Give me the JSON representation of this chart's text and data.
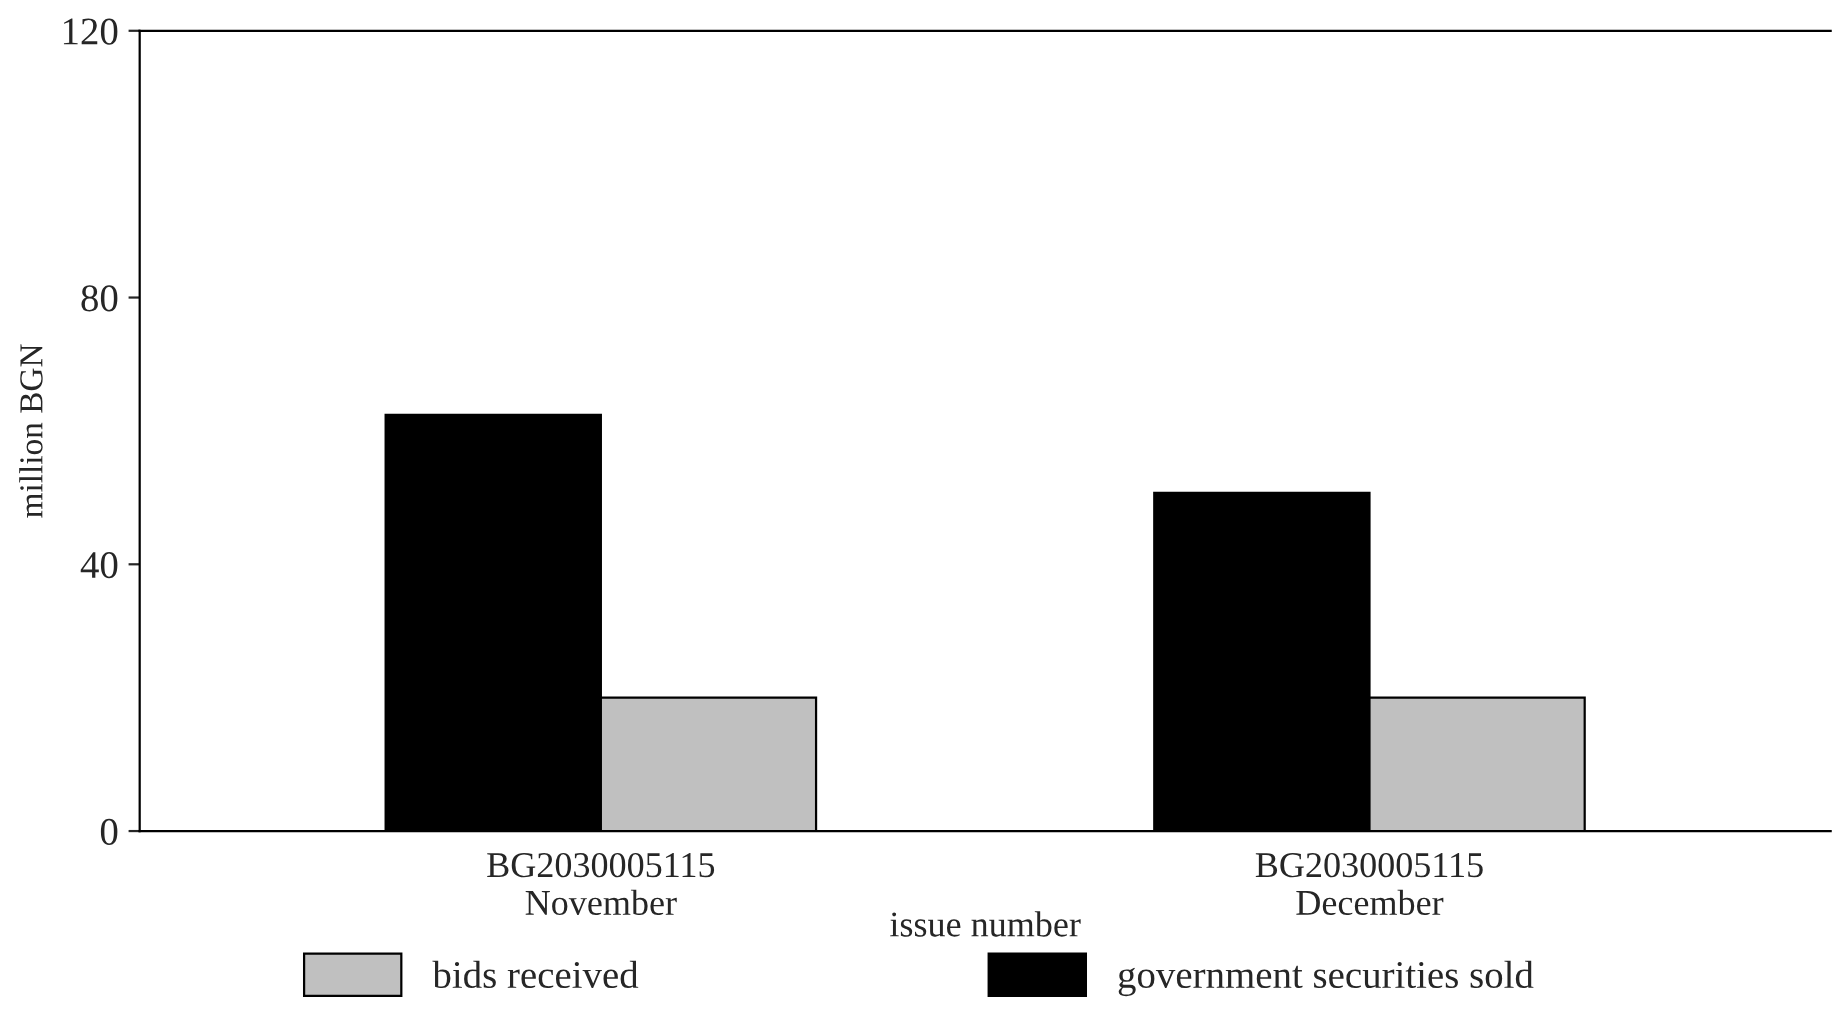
{
  "chart_data": {
    "type": "bar",
    "xlabel": "issue number",
    "ylabel": "million BGN",
    "categories": [
      "BG2030005115\nNovember",
      "BG2030005115\nDecember"
    ],
    "series": [
      {
        "name": "government securities sold",
        "color": "#000000",
        "values": [
          62.4,
          50.7
        ]
      },
      {
        "name": "bids received",
        "color": "#c0c0c0",
        "values": [
          20,
          20
        ]
      }
    ],
    "ylim": [
      0,
      120
    ],
    "yticks": [
      0,
      40,
      80,
      120
    ],
    "grid": false,
    "legend": "bottom"
  }
}
